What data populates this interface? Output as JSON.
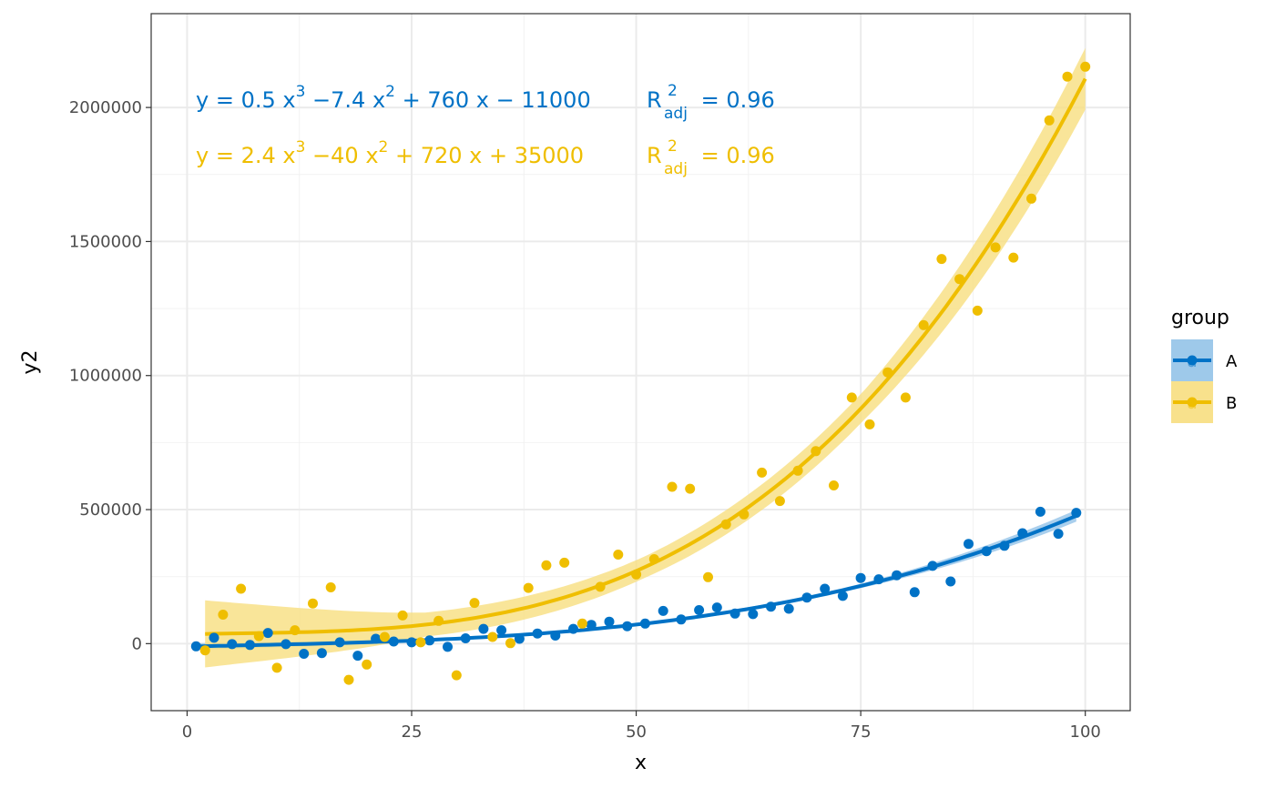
{
  "chart_data": {
    "type": "scatter",
    "title": "",
    "xlabel": "x",
    "ylabel": "y2",
    "xlim": [
      -4,
      105
    ],
    "ylim": [
      -250000,
      2350000
    ],
    "x_ticks": [
      0,
      25,
      50,
      75,
      100
    ],
    "x_tick_labels": [
      "0",
      "25",
      "50",
      "75",
      "100"
    ],
    "y_ticks": [
      0,
      500000,
      1000000,
      1500000,
      2000000
    ],
    "y_tick_labels": [
      "0",
      "500000",
      "1000000",
      "1500000",
      "2000000"
    ],
    "grid": true,
    "legend": {
      "title": "group",
      "position": "right",
      "entries": [
        "A",
        "B"
      ],
      "key_glyph": "a"
    },
    "series": [
      {
        "name": "A",
        "color": "#0072C6",
        "ribbon_color": "#93C3E8",
        "fit": {
          "a3": 0.5,
          "a2": -7.4,
          "a1": 760,
          "a0": -11000,
          "x_range": [
            1,
            99
          ],
          "se": [
            12000,
            6000,
            5000,
            8000,
            22000
          ]
        },
        "equation": {
          "coefs": [
            "0.5",
            "7.4",
            "760",
            "11000"
          ],
          "signs": [
            "−",
            "+",
            "−"
          ],
          "r2": "0.96"
        },
        "points": [
          [
            1,
            -10000
          ],
          [
            3,
            22000
          ],
          [
            5,
            -2000
          ],
          [
            7,
            -5000
          ],
          [
            9,
            40000
          ],
          [
            11,
            -2000
          ],
          [
            13,
            -38000
          ],
          [
            15,
            -35000
          ],
          [
            17,
            5000
          ],
          [
            19,
            -45000
          ],
          [
            21,
            18000
          ],
          [
            23,
            8000
          ],
          [
            25,
            5000
          ],
          [
            27,
            12000
          ],
          [
            29,
            -12000
          ],
          [
            31,
            20000
          ],
          [
            33,
            55000
          ],
          [
            35,
            50000
          ],
          [
            37,
            18000
          ],
          [
            39,
            38000
          ],
          [
            41,
            30000
          ],
          [
            43,
            55000
          ],
          [
            45,
            70000
          ],
          [
            47,
            82000
          ],
          [
            49,
            65000
          ],
          [
            51,
            75000
          ],
          [
            53,
            122000
          ],
          [
            55,
            90000
          ],
          [
            57,
            125000
          ],
          [
            59,
            135000
          ],
          [
            61,
            112000
          ],
          [
            63,
            110000
          ],
          [
            65,
            138000
          ],
          [
            67,
            130000
          ],
          [
            69,
            172000
          ],
          [
            71,
            205000
          ],
          [
            73,
            178000
          ],
          [
            75,
            245000
          ],
          [
            77,
            240000
          ],
          [
            79,
            255000
          ],
          [
            81,
            192000
          ],
          [
            83,
            290000
          ],
          [
            85,
            232000
          ],
          [
            87,
            372000
          ],
          [
            89,
            345000
          ],
          [
            91,
            365000
          ],
          [
            93,
            412000
          ],
          [
            95,
            492000
          ],
          [
            97,
            410000
          ],
          [
            99,
            488000
          ]
        ]
      },
      {
        "name": "B",
        "color": "#EFBE00",
        "ribbon_color": "#F7DE80",
        "fit": {
          "a3": 2.4,
          "a2": -40,
          "a1": 720,
          "a0": 35000,
          "x_range": [
            2,
            100
          ],
          "se": [
            125000,
            45000,
            40000,
            55000,
            115000
          ]
        },
        "equation": {
          "coefs": [
            "2.4",
            "40",
            "720",
            "35000"
          ],
          "signs": [
            "−",
            "+",
            "+"
          ],
          "r2": "0.96"
        },
        "points": [
          [
            2,
            -25000
          ],
          [
            4,
            108000
          ],
          [
            6,
            205000
          ],
          [
            8,
            28000
          ],
          [
            10,
            -90000
          ],
          [
            12,
            50000
          ],
          [
            14,
            150000
          ],
          [
            16,
            210000
          ],
          [
            18,
            -135000
          ],
          [
            20,
            -78000
          ],
          [
            22,
            25000
          ],
          [
            24,
            105000
          ],
          [
            26,
            5000
          ],
          [
            28,
            85000
          ],
          [
            30,
            -118000
          ],
          [
            32,
            152000
          ],
          [
            34,
            25000
          ],
          [
            36,
            2000
          ],
          [
            38,
            208000
          ],
          [
            40,
            292000
          ],
          [
            42,
            302000
          ],
          [
            44,
            75000
          ],
          [
            46,
            212000
          ],
          [
            48,
            332000
          ],
          [
            50,
            258000
          ],
          [
            52,
            315000
          ],
          [
            54,
            585000
          ],
          [
            56,
            578000
          ],
          [
            58,
            248000
          ],
          [
            60,
            445000
          ],
          [
            62,
            482000
          ],
          [
            64,
            638000
          ],
          [
            66,
            532000
          ],
          [
            68,
            645000
          ],
          [
            70,
            718000
          ],
          [
            72,
            590000
          ],
          [
            74,
            918000
          ],
          [
            76,
            818000
          ],
          [
            78,
            1012000
          ],
          [
            80,
            918000
          ],
          [
            82,
            1188000
          ],
          [
            84,
            1435000
          ],
          [
            86,
            1360000
          ],
          [
            88,
            1242000
          ],
          [
            90,
            1478000
          ],
          [
            92,
            1440000
          ],
          [
            94,
            1660000
          ],
          [
            96,
            1952000
          ],
          [
            98,
            2115000
          ],
          [
            100,
            2152000
          ]
        ]
      }
    ]
  }
}
